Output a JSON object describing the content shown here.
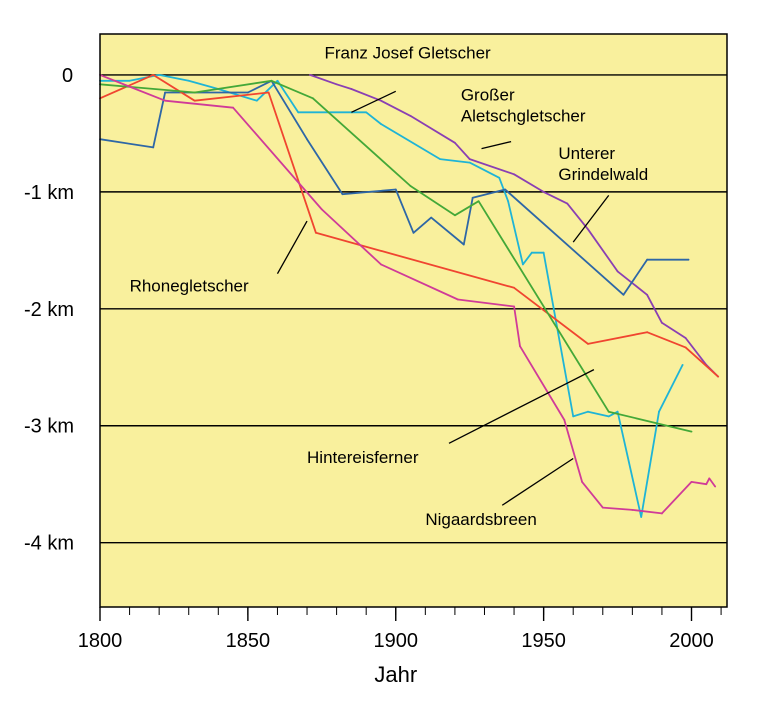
{
  "chart_data": {
    "type": "line",
    "title": "",
    "xlabel": "Jahr",
    "ylabel": "",
    "xlim": [
      1800,
      2012
    ],
    "ylim": [
      -4.55,
      0.35
    ],
    "grid": "horizontal",
    "background": "#f9f09d",
    "x_ticks": [
      1800,
      1850,
      1900,
      1950,
      2000
    ],
    "x_minor_step": 10,
    "y_ticks": [
      {
        "value": 0,
        "label": "0"
      },
      {
        "value": -1,
        "label": "-1 km"
      },
      {
        "value": -2,
        "label": "-2 km"
      },
      {
        "value": -3,
        "label": "-3 km"
      },
      {
        "value": -4,
        "label": "-4 km"
      }
    ],
    "series": [
      {
        "name": "Franz Josef Gletscher",
        "color": "#1fb4d6",
        "points": [
          [
            1800,
            -0.05
          ],
          [
            1810,
            -0.05
          ],
          [
            1820,
            0.0
          ],
          [
            1830,
            -0.05
          ],
          [
            1840,
            -0.12
          ],
          [
            1853,
            -0.22
          ],
          [
            1860,
            -0.05
          ],
          [
            1867,
            -0.32
          ],
          [
            1885,
            -0.32
          ],
          [
            1890,
            -0.32
          ],
          [
            1895,
            -0.42
          ],
          [
            1915,
            -0.72
          ],
          [
            1925,
            -0.75
          ],
          [
            1935,
            -0.88
          ],
          [
            1938,
            -1.08
          ],
          [
            1943,
            -1.62
          ],
          [
            1946,
            -1.52
          ],
          [
            1950,
            -1.52
          ],
          [
            1960,
            -2.92
          ],
          [
            1965,
            -2.88
          ],
          [
            1972,
            -2.92
          ],
          [
            1975,
            -2.88
          ],
          [
            1983,
            -3.78
          ],
          [
            1989,
            -2.88
          ],
          [
            1997,
            -2.48
          ]
        ]
      },
      {
        "name": "Großer Aletschgletscher",
        "color": "#8a3fb3",
        "points": [
          [
            1871,
            0.0
          ],
          [
            1880,
            -0.08
          ],
          [
            1885,
            -0.12
          ],
          [
            1895,
            -0.22
          ],
          [
            1905,
            -0.35
          ],
          [
            1920,
            -0.58
          ],
          [
            1925,
            -0.72
          ],
          [
            1940,
            -0.85
          ],
          [
            1950,
            -1.0
          ],
          [
            1958,
            -1.1
          ],
          [
            1965,
            -1.32
          ],
          [
            1975,
            -1.68
          ],
          [
            1985,
            -1.88
          ],
          [
            1990,
            -2.12
          ],
          [
            1998,
            -2.25
          ],
          [
            2005,
            -2.48
          ],
          [
            2009,
            -2.58
          ]
        ]
      },
      {
        "name": "Unterer Grindelwald",
        "color": "#2e67a6",
        "points": [
          [
            1800,
            -0.55
          ],
          [
            1818,
            -0.62
          ],
          [
            1822,
            -0.15
          ],
          [
            1850,
            -0.15
          ],
          [
            1858,
            -0.05
          ],
          [
            1870,
            -0.55
          ],
          [
            1882,
            -1.02
          ],
          [
            1900,
            -0.98
          ],
          [
            1906,
            -1.35
          ],
          [
            1912,
            -1.22
          ],
          [
            1923,
            -1.45
          ],
          [
            1926,
            -1.05
          ],
          [
            1937,
            -0.98
          ],
          [
            1977,
            -1.88
          ],
          [
            1985,
            -1.58
          ],
          [
            1999,
            -1.58
          ]
        ]
      },
      {
        "name": "Rhonegletscher",
        "color": "#f04530",
        "points": [
          [
            1800,
            -0.2
          ],
          [
            1818,
            0.0
          ],
          [
            1832,
            -0.22
          ],
          [
            1857,
            -0.15
          ],
          [
            1873,
            -1.35
          ],
          [
            1940,
            -1.82
          ],
          [
            1965,
            -2.3
          ],
          [
            1985,
            -2.2
          ],
          [
            1998,
            -2.33
          ],
          [
            2009,
            -2.58
          ]
        ]
      },
      {
        "name": "Hintereisferner",
        "color": "#44a838",
        "points": [
          [
            1800,
            -0.08
          ],
          [
            1832,
            -0.15
          ],
          [
            1858,
            -0.05
          ],
          [
            1872,
            -0.2
          ],
          [
            1905,
            -0.95
          ],
          [
            1920,
            -1.2
          ],
          [
            1928,
            -1.08
          ],
          [
            1972,
            -2.88
          ],
          [
            2000,
            -3.05
          ]
        ]
      },
      {
        "name": "Nigaardsbreen",
        "color": "#d03b98",
        "points": [
          [
            1800,
            0.0
          ],
          [
            1822,
            -0.22
          ],
          [
            1845,
            -0.28
          ],
          [
            1875,
            -1.15
          ],
          [
            1895,
            -1.62
          ],
          [
            1921,
            -1.92
          ],
          [
            1940,
            -1.98
          ],
          [
            1942,
            -2.32
          ],
          [
            1957,
            -2.95
          ],
          [
            1963,
            -3.48
          ],
          [
            1970,
            -3.7
          ],
          [
            1980,
            -3.72
          ],
          [
            1990,
            -3.75
          ],
          [
            2000,
            -3.48
          ],
          [
            2005,
            -3.5
          ],
          [
            2006,
            -3.45
          ],
          [
            2008,
            -3.52
          ]
        ]
      }
    ],
    "annotations": [
      {
        "series": "Franz Josef Gletscher",
        "lines": [
          "Franz Josef Gletscher"
        ],
        "anchor": "middle",
        "text_at": [
          1904,
          0.14
        ],
        "leader": [
          [
            1885,
            -0.32
          ],
          [
            1900,
            -0.14
          ]
        ]
      },
      {
        "series": "Großer Aletschgletscher",
        "lines": [
          "Großer",
          "Aletschgletscher"
        ],
        "anchor": "start",
        "text_at": [
          1922,
          -0.22
        ],
        "leader": [
          [
            1929,
            -0.63
          ],
          [
            1939,
            -0.57
          ]
        ]
      },
      {
        "series": "Unterer Grindelwald",
        "lines": [
          "Unterer",
          "Grindelwald"
        ],
        "anchor": "start",
        "text_at": [
          1955,
          -0.72
        ],
        "leader": [
          [
            1960,
            -1.43
          ],
          [
            1972,
            -1.03
          ]
        ]
      },
      {
        "series": "Rhonegletscher",
        "lines": [
          "Rhonegletscher"
        ],
        "anchor": "start",
        "text_at": [
          1810,
          -1.85
        ],
        "leader": [
          [
            1860,
            -1.7
          ],
          [
            1870,
            -1.25
          ]
        ]
      },
      {
        "series": "Hintereisferner",
        "lines": [
          "Hintereisferner"
        ],
        "anchor": "start",
        "text_at": [
          1870,
          -3.32
        ],
        "leader": [
          [
            1918,
            -3.15
          ],
          [
            1967,
            -2.52
          ]
        ]
      },
      {
        "series": "Nigaardsbreen",
        "lines": [
          "Nigaardsbreen"
        ],
        "anchor": "start",
        "text_at": [
          1910,
          -3.85
        ],
        "leader": [
          [
            1936,
            -3.68
          ],
          [
            1960,
            -3.28
          ]
        ]
      }
    ]
  }
}
